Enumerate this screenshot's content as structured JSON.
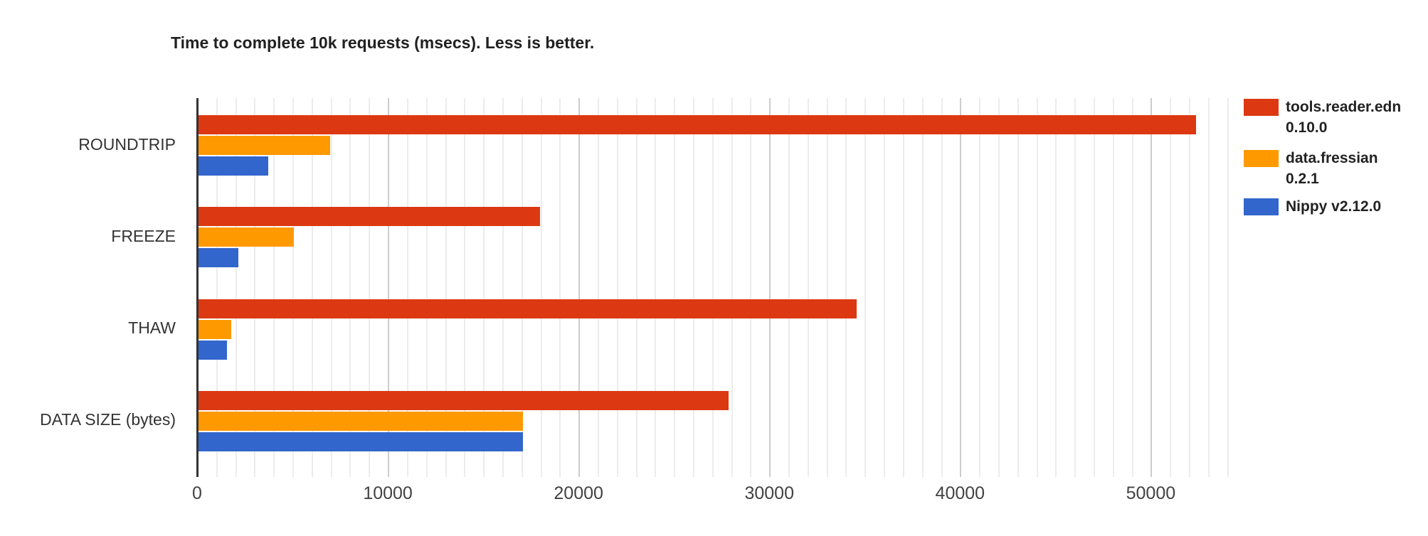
{
  "page": {
    "background": "#ffffff"
  },
  "chart_data": {
    "type": "bar",
    "orientation": "horizontal",
    "title": "Time to complete 10k requests (msecs). Less is better.",
    "categories": [
      "ROUNDTRIP",
      "FREEZE",
      "THAW",
      "DATA SIZE (bytes)"
    ],
    "series": [
      {
        "name": "tools.reader.edn 0.10.0",
        "color": "#dc3912",
        "values": [
          52300,
          17900,
          34500,
          27800
        ]
      },
      {
        "name": "data.fressian 0.2.1",
        "color": "#ff9900",
        "values": [
          6900,
          5000,
          1700,
          17000
        ]
      },
      {
        "name": "Nippy v2.12.0",
        "color": "#3366cc",
        "values": [
          3650,
          2100,
          1500,
          17000
        ]
      }
    ],
    "xlabel": "",
    "ylabel": "",
    "xlim": [
      0,
      54200
    ],
    "x_ticks": [
      0,
      10000,
      20000,
      30000,
      40000,
      50000
    ],
    "minor_gridline_step": 1000,
    "grid": true,
    "legend_position": "right"
  },
  "legend": {
    "items": [
      {
        "line1": "tools.reader.edn",
        "line2": "0.10.0",
        "color": "#dc3912"
      },
      {
        "line1": "data.fressian",
        "line2": "0.2.1",
        "color": "#ff9900"
      },
      {
        "line1": "Nippy v2.12.0",
        "color": "#3366cc"
      }
    ]
  }
}
